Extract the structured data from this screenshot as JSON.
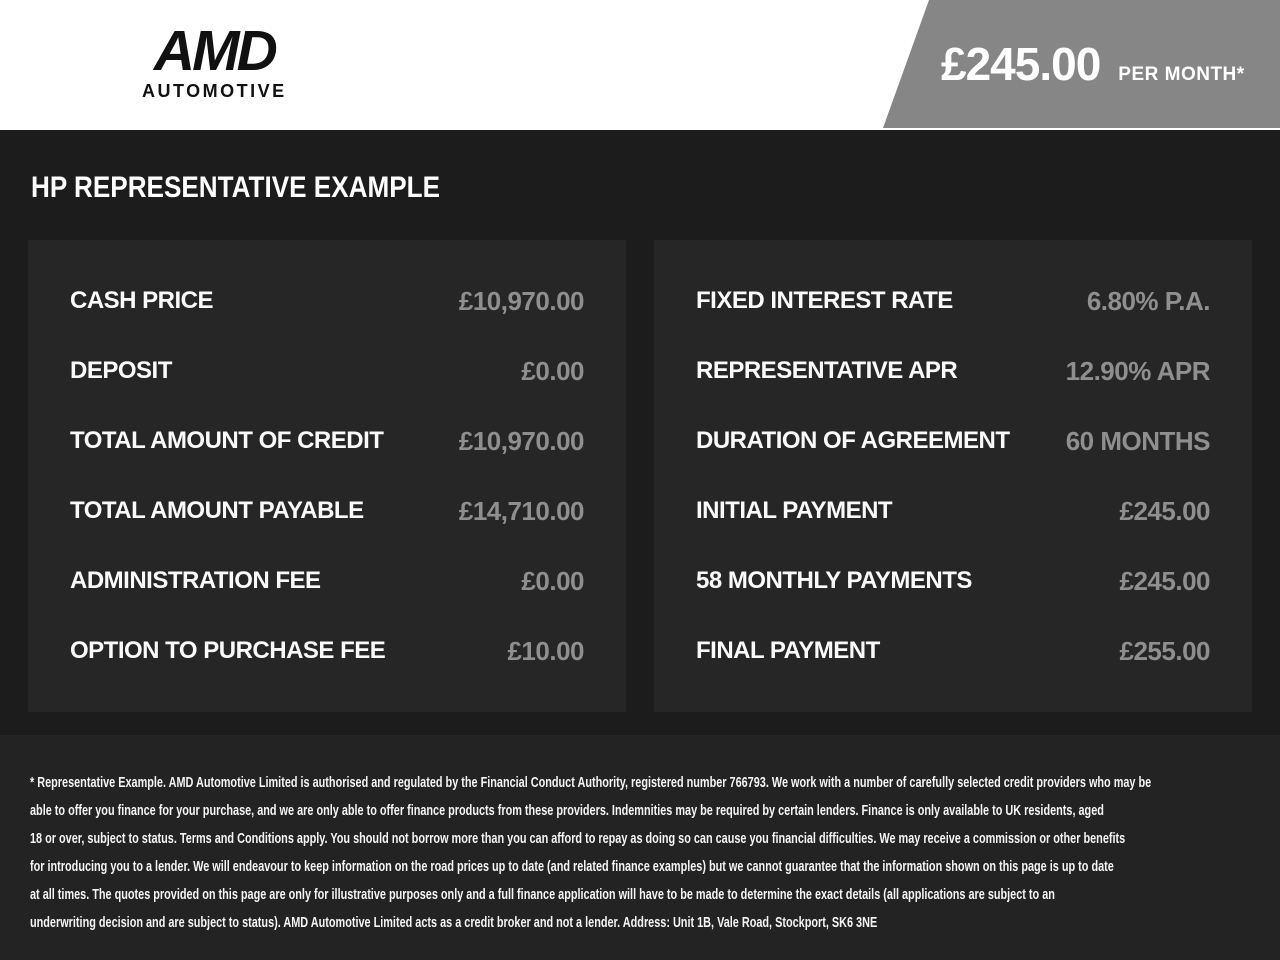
{
  "header": {
    "logo": {
      "brand": "AMD",
      "sub": "AUTOMOTIVE"
    },
    "price_banner": {
      "amount": "£245.00",
      "period": "PER MONTH*"
    }
  },
  "main": {
    "title": "HP REPRESENTATIVE EXAMPLE",
    "left_panel": {
      "rows": [
        {
          "label": "CASH PRICE",
          "value": "£10,970.00"
        },
        {
          "label": "DEPOSIT",
          "value": "£0.00"
        },
        {
          "label": "TOTAL AMOUNT OF CREDIT",
          "value": "£10,970.00"
        },
        {
          "label": "TOTAL AMOUNT PAYABLE",
          "value": "£14,710.00"
        },
        {
          "label": "ADMINISTRATION FEE",
          "value": "£0.00"
        },
        {
          "label": "OPTION TO PURCHASE FEE",
          "value": "£10.00"
        }
      ]
    },
    "right_panel": {
      "rows": [
        {
          "label": "FIXED INTEREST RATE",
          "value": "6.80% P.A."
        },
        {
          "label": "REPRESENTATIVE APR",
          "value": "12.90% APR"
        },
        {
          "label": "DURATION OF AGREEMENT",
          "value": "60 MONTHS"
        },
        {
          "label": "INITIAL PAYMENT",
          "value": "£245.00"
        },
        {
          "label": "58 MONTHLY PAYMENTS",
          "value": "£245.00"
        },
        {
          "label": "FINAL PAYMENT",
          "value": "£255.00"
        }
      ]
    }
  },
  "footer": {
    "disclaimer_lines": [
      "* Representative Example. AMD Automotive Limited is authorised and regulated by the Financial Conduct Authority, registered number 766793. We work with a number of carefully selected credit providers who may be",
      "able to offer you finance for your purchase, and we are only able to offer finance products from these providers. Indemnities may be required by certain lenders. Finance is only available to UK residents, aged",
      "18 or over, subject to status. Terms and Conditions apply. You should not borrow more than you can afford to repay as doing so can cause you financial difficulties. We may receive a commission or other benefits",
      "for introducing you to a lender. We will endeavour to keep information on the road prices up to date (and related finance examples) but we cannot guarantee that the information shown on this page is up to date",
      "at all times. The quotes provided on this page are only for illustrative purposes only and a full finance application will have to be made to determine the exact details (all applications are subject to an",
      "underwriting decision and are subject to status). AMD Automotive Limited acts as a credit broker and not a lender. Address: Unit 1B, Vale Road, Stockport, SK6 3NE"
    ]
  },
  "colors": {
    "header_background": "#ffffff",
    "banner_background": "#868686",
    "main_background": "#1c1c1c",
    "panel_background": "#262626",
    "footer_background": "#232323",
    "label_text": "#fafafa",
    "value_text": "#8f8f8f",
    "logo_text": "#111111"
  }
}
